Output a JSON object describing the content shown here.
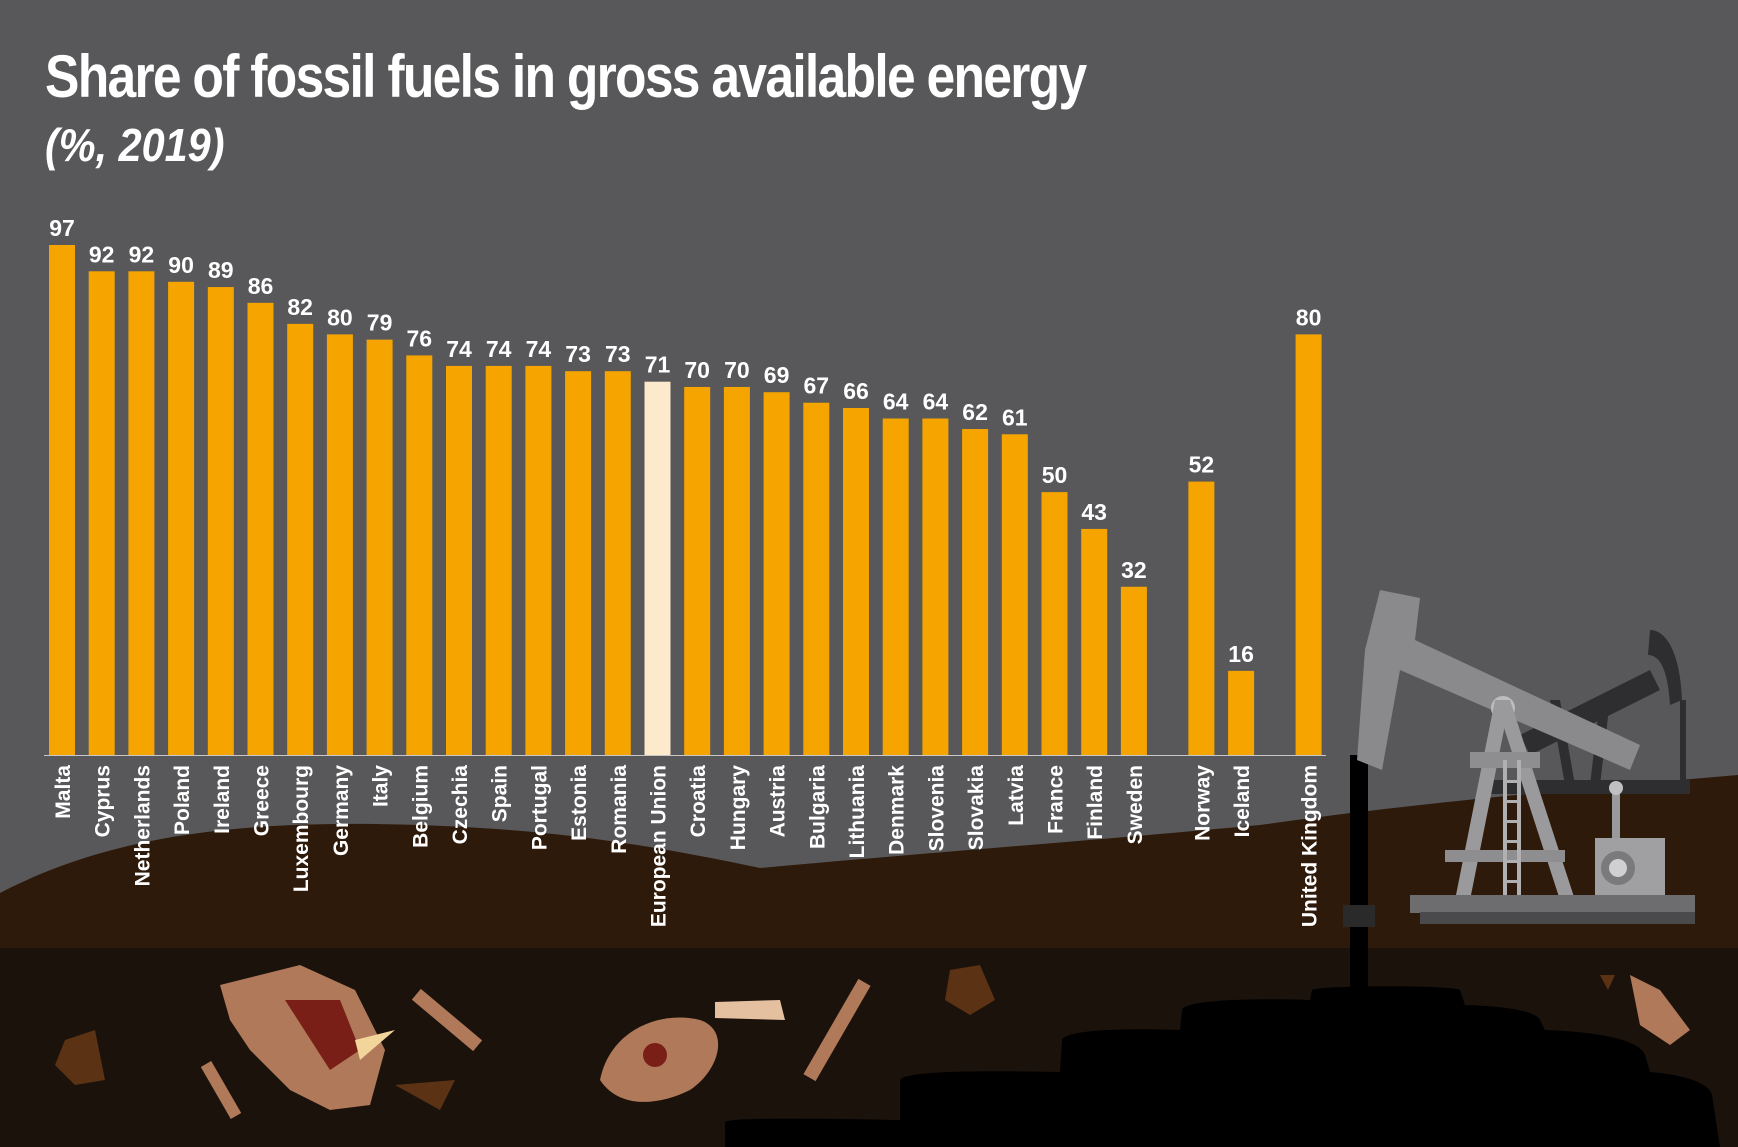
{
  "chart_data": {
    "type": "bar",
    "title": "Share of fossil fuels in gross available energy",
    "subtitle": "(%, 2019)",
    "xlabel": "",
    "ylabel": "",
    "ylim": [
      0,
      100
    ],
    "grid": false,
    "legend": "none",
    "highlight_category": "European Union",
    "colors": {
      "bar": "#f6a500",
      "highlight": "#fde9cb",
      "label": "#ffffff",
      "background": "#58585a"
    },
    "groups": [
      {
        "categories": [
          "Malta",
          "Cyprus",
          "Netherlands",
          "Poland",
          "Ireland",
          "Greece",
          "Luxembourg",
          "Germany",
          "Italy",
          "Belgium",
          "Czechia",
          "Spain",
          "Portugal",
          "Estonia",
          "Romania",
          "European Union",
          "Croatia",
          "Hungary",
          "Austria",
          "Bulgaria",
          "Lithuania",
          "Denmark",
          "Slovenia",
          "Slovakia",
          "Latvia",
          "France",
          "Finland",
          "Sweden"
        ],
        "values": [
          97,
          92,
          92,
          90,
          89,
          86,
          82,
          80,
          79,
          76,
          74,
          74,
          74,
          73,
          73,
          71,
          70,
          70,
          69,
          67,
          66,
          64,
          64,
          62,
          61,
          50,
          43,
          32
        ]
      },
      {
        "categories": [
          "Norway",
          "Iceland"
        ],
        "values": [
          52,
          16
        ]
      },
      {
        "categories": [
          "United Kingdom"
        ],
        "values": [
          80
        ]
      }
    ]
  },
  "decor": {
    "illustration": [
      "pump-jack",
      "dinosaur-fossils",
      "oil-deposit"
    ]
  }
}
